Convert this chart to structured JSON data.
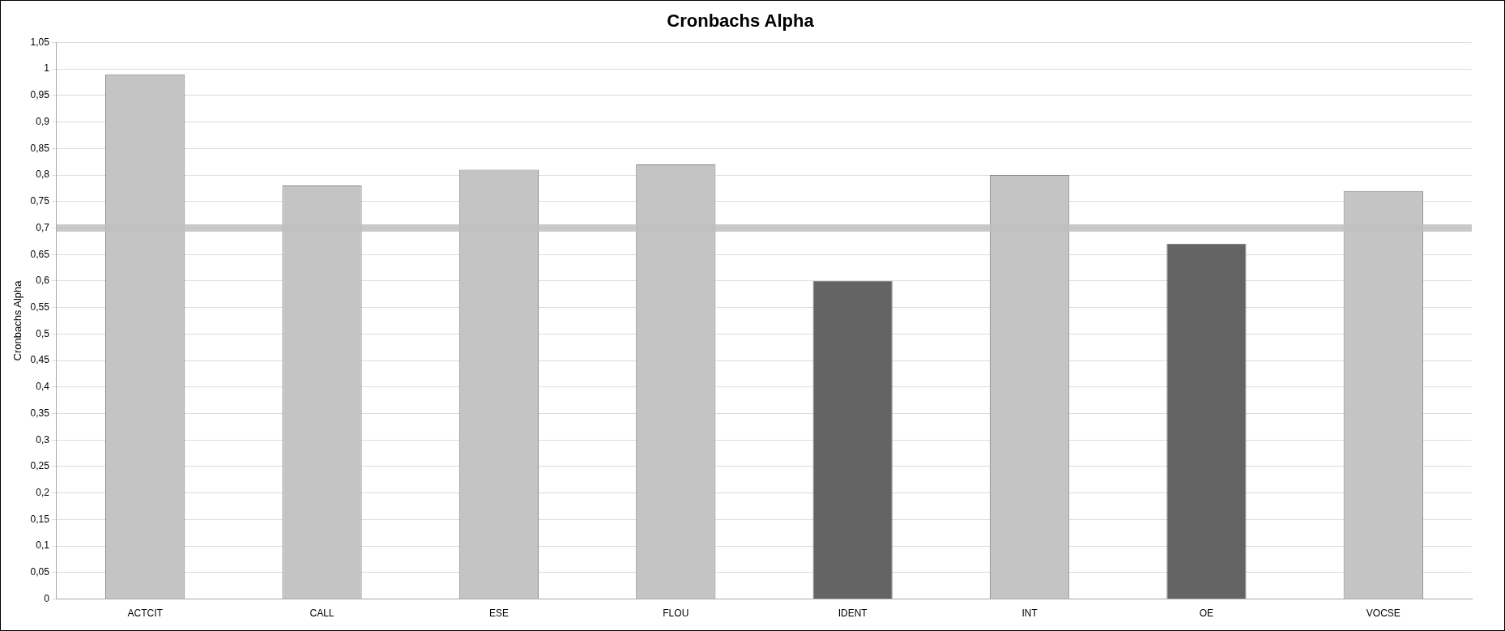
{
  "chart_data": {
    "type": "bar",
    "title": "Cronbachs Alpha",
    "ylabel": "Cronbachs Alpha",
    "categories": [
      "ACTCIT",
      "CALL",
      "ESE",
      "FLOU",
      "IDENT",
      "INT",
      "OE",
      "VOCSE"
    ],
    "values": [
      0.99,
      0.78,
      0.81,
      0.82,
      0.6,
      0.8,
      0.67,
      0.77
    ],
    "colors": [
      "#c4c4c4",
      "#c4c4c4",
      "#c4c4c4",
      "#c4c4c4",
      "#646464",
      "#c4c4c4",
      "#646464",
      "#c4c4c4"
    ],
    "ylim": [
      0,
      1.05
    ],
    "yticks": [
      0,
      {
        "value": 0.05,
        "label": "0,05"
      },
      {
        "value": 0.1,
        "label": "0,1"
      },
      {
        "value": 0.15,
        "label": "0,15"
      },
      {
        "value": 0.2,
        "label": "0,2"
      },
      {
        "value": 0.25,
        "label": "0,25"
      },
      {
        "value": 0.3,
        "label": "0,3"
      },
      {
        "value": 0.35,
        "label": "0,35"
      },
      {
        "value": 0.4,
        "label": "0,4"
      },
      {
        "value": 0.45,
        "label": "0,45"
      },
      {
        "value": 0.5,
        "label": "0,5"
      },
      {
        "value": 0.55,
        "label": "0,55"
      },
      {
        "value": 0.6,
        "label": "0,6"
      },
      {
        "value": 0.65,
        "label": "0,65"
      },
      {
        "value": 0.7,
        "label": "0,7"
      },
      {
        "value": 0.75,
        "label": "0,75"
      },
      {
        "value": 0.8,
        "label": "0,8"
      },
      {
        "value": 0.85,
        "label": "0,85"
      },
      {
        "value": 0.9,
        "label": "0,9"
      },
      {
        "value": 0.95,
        "label": "0,95"
      },
      1,
      {
        "value": 1.05,
        "label": "1,05"
      }
    ],
    "ref_lines": [
      {
        "axis": "y",
        "value": 0.7,
        "color": "#c0c0c0"
      }
    ],
    "grid": "y",
    "legend": false
  }
}
